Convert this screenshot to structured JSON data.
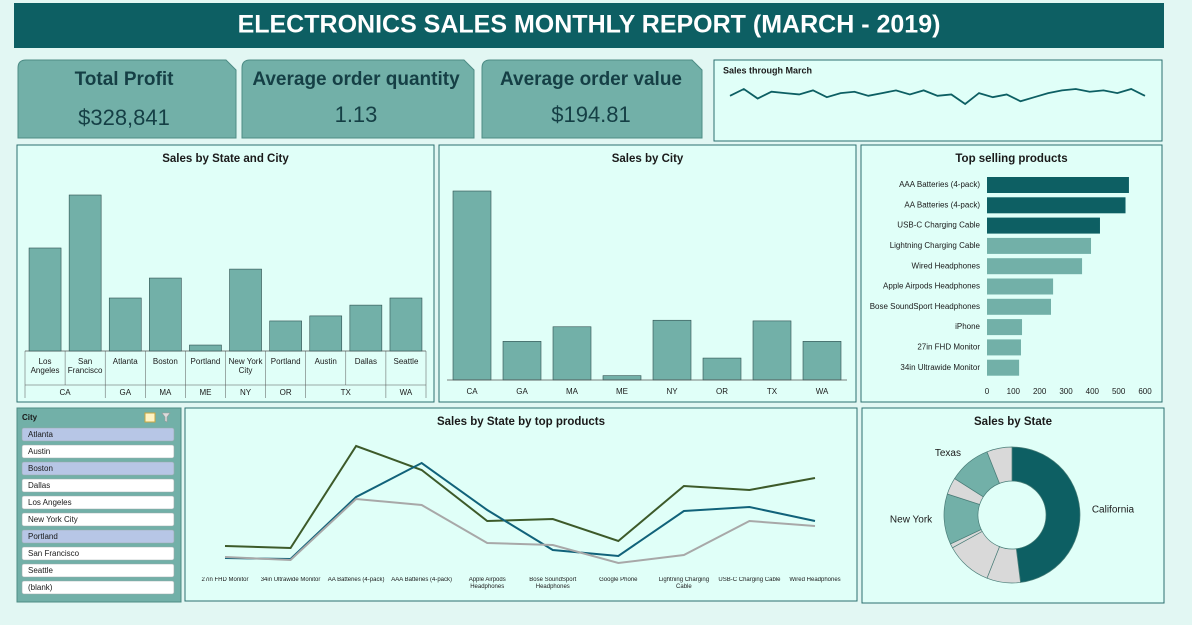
{
  "header": {
    "title": "ELECTRONICS SALES MONTHLY REPORT (MARCH - 2019)"
  },
  "kpis": [
    {
      "label": "Total Profit",
      "value": "$328,841"
    },
    {
      "label": "Average order quantity",
      "value": "1.13"
    },
    {
      "label": "Average order value",
      "value": "$194.81"
    }
  ],
  "slicer": {
    "title": "City",
    "items": [
      "Atlanta",
      "Austin",
      "Boston",
      "Dallas",
      "Los Angeles",
      "New York City",
      "Portland",
      "San Francisco",
      "Seattle",
      "(blank)"
    ],
    "highlighted": [
      true,
      false,
      true,
      false,
      false,
      false,
      true,
      false,
      false,
      false
    ]
  },
  "chart_data": [
    {
      "type": "line",
      "title": "Sales through March",
      "color": "#0d5f63",
      "values": [
        13,
        18,
        11,
        16,
        15,
        14,
        17,
        12,
        15,
        16,
        13,
        15,
        17,
        14,
        17,
        13,
        14,
        7,
        15,
        12,
        14,
        9,
        12,
        15,
        17,
        18,
        16,
        17,
        15,
        18,
        13
      ]
    },
    {
      "type": "bar",
      "title": "Sales by State and City",
      "color": "#72b0a8",
      "groups": [
        {
          "name": "CA",
          "categories": [
            "Los Angeles",
            "San Francisco"
          ],
          "values": [
            449000,
            680000
          ]
        },
        {
          "name": "GA",
          "categories": [
            "Atlanta"
          ],
          "values": [
            231000
          ]
        },
        {
          "name": "MA",
          "categories": [
            "Boston"
          ],
          "values": [
            318000
          ]
        },
        {
          "name": "ME",
          "categories": [
            "Portland"
          ],
          "values": [
            26000
          ]
        },
        {
          "name": "NY",
          "categories": [
            "New York City"
          ],
          "values": [
            357000
          ]
        },
        {
          "name": "OR",
          "categories": [
            "Portland"
          ],
          "values": [
            131000
          ]
        },
        {
          "name": "TX",
          "categories": [
            "Austin",
            "Dallas"
          ],
          "values": [
            153000,
            200000
          ]
        },
        {
          "name": "WA",
          "categories": [
            "Seattle"
          ],
          "values": [
            231000
          ]
        }
      ]
    },
    {
      "type": "bar",
      "title": "Sales by City",
      "color": "#72b0a8",
      "categories": [
        "CA",
        "GA",
        "MA",
        "ME",
        "NY",
        "OR",
        "TX",
        "WA"
      ],
      "values": [
        1129000,
        231000,
        318000,
        26000,
        357000,
        131000,
        353000,
        231000
      ]
    },
    {
      "type": "bar",
      "orientation": "horizontal",
      "title": "Top selling products",
      "categories": [
        "AAA Batteries (4-pack)",
        "AA Batteries (4-pack)",
        "USB-C Charging Cable",
        "Lightning Charging Cable",
        "Wired Headphones",
        "Apple Airpods Headphones",
        "Bose SoundSport Headphones",
        "iPhone",
        "27in FHD Monitor",
        "34in Ultrawide Monitor"
      ],
      "values": [
        539,
        526,
        429,
        395,
        361,
        251,
        243,
        133,
        129,
        122
      ],
      "colors": [
        "#0d5f63",
        "#0d5f63",
        "#0d5f63",
        "#72b0a8",
        "#72b0a8",
        "#72b0a8",
        "#72b0a8",
        "#72b0a8",
        "#72b0a8",
        "#72b0a8"
      ],
      "xlim": [
        0,
        600
      ],
      "xticks": [
        0,
        100,
        200,
        300,
        400,
        500,
        600
      ]
    },
    {
      "type": "line",
      "title": "Sales by State by top products",
      "categories": [
        "27in FHD Monitor",
        "34in Ultrawide Monitor",
        "AA Batteries (4-pack)",
        "AAA Batteries (4-pack)",
        "Apple Airpods Headphones",
        "Bose SoundSport Headphones",
        "Google Phone",
        "Lightning Charging Cable",
        "USB-C Charging Cable",
        "Wired Headphones"
      ],
      "series": [
        {
          "color": "#3d5a2a",
          "values": [
            34,
            32,
            134,
            110,
            59,
            61,
            39,
            94,
            90,
            102
          ]
        },
        {
          "color": "#11627a",
          "values": [
            22,
            21,
            83,
            117,
            70,
            30,
            24,
            69,
            73,
            59
          ]
        },
        {
          "color": "#a8a8a8",
          "values": [
            23,
            20,
            81,
            75,
            37,
            35,
            17,
            25,
            59,
            54
          ]
        }
      ]
    },
    {
      "type": "pie",
      "donut": true,
      "title": "Sales by State",
      "categories": [
        "California",
        null,
        null,
        null,
        "New York",
        null,
        "Texas",
        null
      ],
      "values": [
        48,
        8,
        11,
        1,
        12,
        4,
        10,
        6
      ],
      "colors": [
        "#0d5f63",
        "#d9d9d9",
        "#d9d9d9",
        "#d9d9d9",
        "#72b0a8",
        "#d9d9d9",
        "#72b0a8",
        "#d9d9d9"
      ]
    }
  ]
}
